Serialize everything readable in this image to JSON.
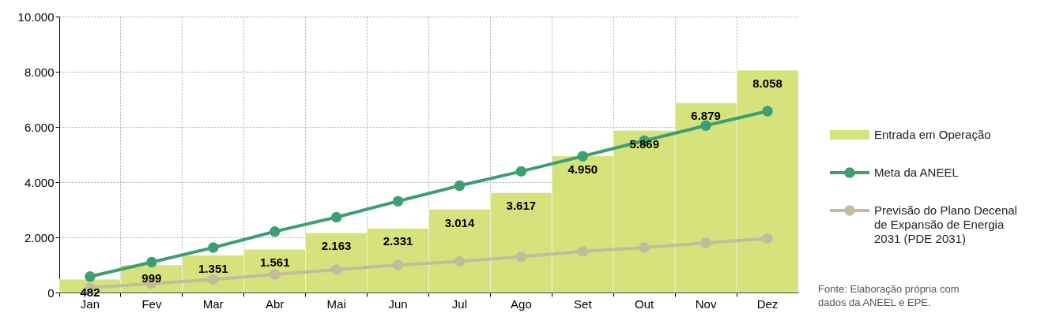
{
  "chart_data": {
    "type": "bar",
    "categories": [
      "Jan",
      "Fev",
      "Mar",
      "Abr",
      "Mai",
      "Jun",
      "Jul",
      "Ago",
      "Set",
      "Out",
      "Nov",
      "Dez"
    ],
    "series": [
      {
        "name": "Entrada em Operação",
        "color": "#d6e27c",
        "values": [
          482,
          999,
          1351,
          1561,
          2163,
          2331,
          3014,
          3617,
          4950,
          5869,
          6879,
          8058
        ],
        "value_labels": [
          "482",
          "999",
          "1.351",
          "1.561",
          "2.163",
          "2.331",
          "3.014",
          "3.617",
          "4.950",
          "5.869",
          "6.879",
          "8.058"
        ]
      },
      {
        "name": "Meta da ANEEL",
        "type": "line",
        "color": "#3d9e72",
        "values": [
          580,
          1100,
          1630,
          2210,
          2730,
          3310,
          3870,
          4390,
          4940,
          5500,
          6050,
          6570
        ]
      },
      {
        "name": "Previsão do Plano Decenal de Expansão de Energia 2031 (PDE 2031)",
        "type": "line",
        "color": "#c2bc9c",
        "values": [
          170,
          330,
          470,
          660,
          830,
          1000,
          1130,
          1300,
          1490,
          1630,
          1800,
          1960
        ]
      }
    ],
    "ylim": [
      0,
      10000
    ],
    "yticks": [
      {
        "value": 0,
        "label": "0"
      },
      {
        "value": 2000,
        "label": "2.000"
      },
      {
        "value": 4000,
        "label": "4.000"
      },
      {
        "value": 6000,
        "label": "6.000"
      },
      {
        "value": 8000,
        "label": "8.000"
      },
      {
        "value": 10000,
        "label": "10.000"
      }
    ],
    "grid": true,
    "marker": "circle",
    "legend": "right",
    "annotations": [
      "Fonte: Elaboração própria com dados da ANEEL e EPE."
    ]
  }
}
